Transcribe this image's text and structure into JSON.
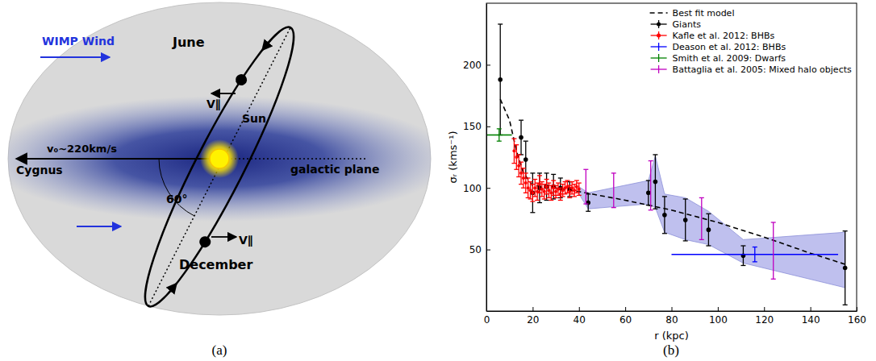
{
  "diagram": {
    "wimp_wind": "WIMP Wind",
    "june": "June",
    "v_parallel_june": "V∥",
    "sun": "Sun",
    "v0": "v₀~220km/s",
    "cygnus": "Cygnus",
    "galactic_plane": "galactic plane",
    "angle": "60°",
    "december": "December",
    "v_parallel_december": "V∥"
  },
  "panel_labels": [
    "(a)",
    "(b)"
  ],
  "chart_data": {
    "type": "errorbar",
    "x_label": "r (kpc)",
    "y_label": "σᵣ (kms⁻¹)",
    "xlim": [
      0,
      160
    ],
    "xticks": [
      0,
      20,
      40,
      60,
      80,
      100,
      120,
      140,
      160
    ],
    "ylim": [
      0,
      250
    ],
    "yticks": [
      50,
      100,
      150,
      200
    ],
    "legend": "upper right",
    "grid": false,
    "band": {
      "color": "#a9abe8",
      "x": [
        40,
        44,
        70,
        73,
        77,
        86,
        96,
        111,
        155
      ],
      "lower": [
        95,
        83,
        87,
        84,
        64,
        58,
        54,
        39,
        19
      ],
      "upper": [
        101,
        96,
        106,
        126,
        95,
        92,
        81,
        58,
        64
      ]
    },
    "series": [
      {
        "name": "Best fit model",
        "type": "line",
        "line_style": "dashed",
        "color": "#000000",
        "x": [
          6,
          10,
          13,
          16,
          20,
          30,
          40,
          60,
          80,
          100,
          120,
          140,
          155
        ],
        "values": [
          172,
          155,
          130,
          112,
          102,
          100,
          97,
          90,
          82,
          72,
          60,
          47,
          38
        ]
      },
      {
        "name": "Giants",
        "type": "errorbar",
        "marker": "circle",
        "color": "#000000",
        "x": [
          6,
          15,
          17,
          20,
          23,
          26,
          29,
          32,
          36,
          44,
          70,
          73,
          77,
          86,
          96,
          111,
          155
        ],
        "values": [
          188,
          141,
          123,
          96,
          100,
          101,
          101,
          100,
          99,
          88,
          96,
          105,
          78,
          74,
          66,
          45,
          35
        ],
        "errors": [
          45,
          14,
          15,
          16,
          12,
          11,
          10,
          8,
          6,
          7,
          10,
          22,
          15,
          17,
          13,
          8,
          30
        ]
      },
      {
        "name": "Kafle et al. 2012: BHBs",
        "type": "errorbar",
        "marker": "circle",
        "color": "#ff0000",
        "x": [
          12,
          13,
          14,
          15,
          16,
          17,
          18,
          19,
          20,
          21,
          22,
          23,
          24,
          25,
          26,
          27,
          28,
          29,
          30,
          31,
          32,
          33,
          34,
          35,
          36,
          37,
          38,
          39,
          40
        ],
        "values": [
          130,
          125,
          118,
          112,
          108,
          104,
          100,
          98,
          96,
          100,
          97,
          103,
          99,
          97,
          101,
          98,
          96,
          100,
          97,
          99,
          95,
          98,
          100,
          101,
          97,
          100,
          98,
          101,
          99
        ],
        "errors": [
          10,
          10,
          9,
          9,
          8,
          8,
          8,
          7,
          7,
          7,
          7,
          7,
          6,
          6,
          6,
          6,
          6,
          6,
          5,
          5,
          5,
          5,
          5,
          5,
          5,
          5,
          5,
          5,
          5
        ]
      },
      {
        "name": "Deason et al. 2012: BHBs",
        "type": "errorbar",
        "marker": "none",
        "color": "#0000ff",
        "x": [
          116
        ],
        "xerr": [
          36
        ],
        "values": [
          46
        ],
        "errors": [
          6
        ]
      },
      {
        "name": "Smith et al. 2009: Dwarfs",
        "type": "errorbar",
        "marker": "none",
        "color": "#008000",
        "x": [
          5.5
        ],
        "xerr": [
          5.5
        ],
        "values": [
          143
        ],
        "errors": [
          5
        ]
      },
      {
        "name": "Battaglia et al. 2005: Mixed halo objects",
        "type": "errorbar",
        "marker": "none",
        "color": "#c000c0",
        "x": [
          43,
          55,
          71,
          93,
          124
        ],
        "values": [
          101,
          98,
          102,
          75,
          49
        ],
        "errors": [
          14,
          14,
          20,
          17,
          23
        ]
      }
    ]
  }
}
